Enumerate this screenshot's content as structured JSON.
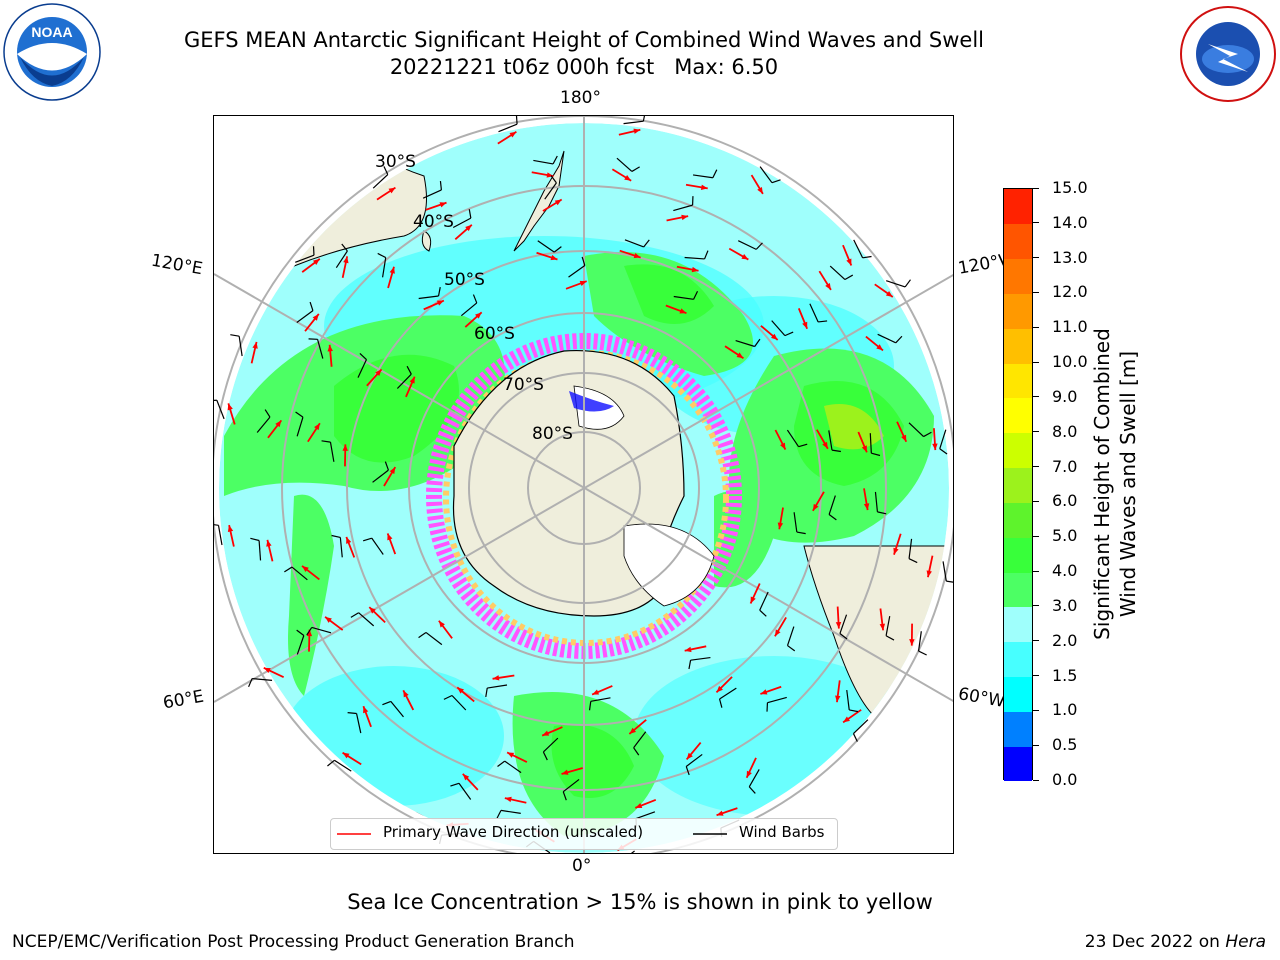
{
  "header": {
    "title_line1": "GEFS MEAN Antarctic Significant Height of Combined Wind Waves and Swell",
    "title_line2": "20221221 t06z 000h fcst   Max: 6.50",
    "noaa_logo_text": "NOAA",
    "noaa_logo_ring_text": "NATIONAL OCEANIC AND ATMOSPHERIC ADMINISTRATION",
    "noaa_logo_ring_text_bottom": "U.S. DEPARTMENT OF COMMERCE",
    "nws_logo_ring_text": "NATIONAL WEATHER SERVICE"
  },
  "map": {
    "projection": "south-polar-stereographic",
    "longitude_labels": {
      "top": "180°",
      "bottom": "0°",
      "upper_left": "120°E",
      "upper_right": "120°W",
      "lower_left": "60°E",
      "lower_right": "60°W"
    },
    "latitude_labels": [
      "30°S",
      "40°S",
      "50°S",
      "60°S",
      "70°S",
      "80°S"
    ],
    "colors": {
      "land": "#efeedc",
      "ocean_low": "#9ffffc",
      "ocean_mid": "#47ffff",
      "green_light": "#4cff64",
      "green_mid": "#38ff3a",
      "green_dark": "#5ef32c",
      "ice_pink": "#ff55ff",
      "ice_yellow": "#ffcc66",
      "arrow": "#ff0000",
      "barb": "#000000",
      "grid": "#b0b0b0"
    }
  },
  "legend": {
    "items": [
      {
        "label": "Primary Wave Direction (unscaled)",
        "color": "#ff0000"
      },
      {
        "label": "Wind Barbs",
        "color": "#000000"
      }
    ]
  },
  "colorbar": {
    "label_line1": "Significant Height of Combined",
    "label_line2": "Wind Waves and Swell [m]",
    "ticks": [
      "0.0",
      "0.5",
      "1.0",
      "1.5",
      "2.0",
      "3.0",
      "4.0",
      "5.0",
      "6.0",
      "7.0",
      "8.0",
      "9.0",
      "10.0",
      "11.0",
      "12.0",
      "13.0",
      "14.0",
      "15.0"
    ],
    "colors": [
      "#0000ff",
      "#0080ff",
      "#00ffff",
      "#47ffff",
      "#9ffffc",
      "#4cff64",
      "#38ff3a",
      "#5ef32c",
      "#9cf21c",
      "#ccff00",
      "#ffff00",
      "#ffe600",
      "#ffbf00",
      "#ff9900",
      "#ff7700",
      "#ff5500",
      "#ff2200"
    ]
  },
  "footer": {
    "caption": "Sea Ice Concentration > 15% is shown in pink to yellow",
    "left": "NCEP/EMC/Verification Post Processing Product Generation Branch",
    "right_prefix": "23 Dec 2022 on ",
    "right_host": "Hera"
  }
}
